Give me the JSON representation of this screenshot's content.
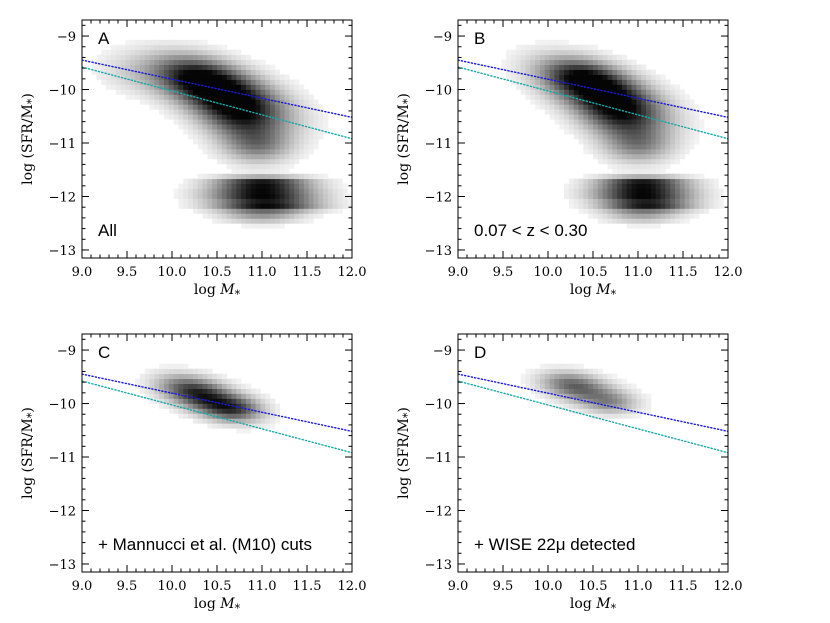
{
  "chart_data": [
    {
      "type": "heatmap",
      "panel": "A",
      "annotation": "All",
      "xlabel_text": "log ",
      "xlabel_var": "M",
      "xlabel_sub": "*",
      "ylabel": "log (SFR/M",
      "ylabel_sub": "*",
      "ylabel_end": ")",
      "xlim": [
        9.0,
        12.0
      ],
      "ylim": [
        -13.15,
        -8.7
      ],
      "xticks": [
        "9.0",
        "9.5",
        "10.0",
        "10.5",
        "11.0",
        "11.5",
        "12.0"
      ],
      "yticks": [
        "-9",
        "-10",
        "-11",
        "-12",
        "-13"
      ],
      "grid": false,
      "density_components": [
        {
          "x": 10.55,
          "y": -10.05,
          "sx": 0.45,
          "sy": 0.38,
          "rho": -0.55,
          "w": 1.0
        },
        {
          "x": 10.75,
          "y": -10.55,
          "sx": 0.3,
          "sy": 0.35,
          "rho": -0.3,
          "w": 0.55
        },
        {
          "x": 10.3,
          "y": -9.75,
          "sx": 0.3,
          "sy": 0.25,
          "rho": -0.3,
          "w": 0.45
        },
        {
          "x": 10.95,
          "y": -11.05,
          "sx": 0.25,
          "sy": 0.22,
          "rho": 0.0,
          "w": 0.35
        },
        {
          "x": 11.0,
          "y": -11.75,
          "sx": 0.35,
          "sy": 0.08,
          "rho": 0.0,
          "w": 1.0
        },
        {
          "x": 11.0,
          "y": -11.95,
          "sx": 0.38,
          "sy": 0.08,
          "rho": 0.0,
          "w": 1.0
        },
        {
          "x": 11.05,
          "y": -12.15,
          "sx": 0.38,
          "sy": 0.08,
          "rho": 0.0,
          "w": 0.95
        },
        {
          "x": 11.0,
          "y": -12.35,
          "sx": 0.3,
          "sy": 0.1,
          "rho": 0.0,
          "w": 0.35
        },
        {
          "x": 9.6,
          "y": -9.7,
          "sx": 0.3,
          "sy": 0.25,
          "rho": -0.2,
          "w": 0.12
        }
      ],
      "lines": [
        {
          "name": "",
          "color": "#1a1ad8",
          "x": [
            9.0,
            12.0
          ],
          "y": [
            -9.45,
            -10.52
          ]
        },
        {
          "name": "",
          "color": "#1aa8a8",
          "x": [
            9.0,
            12.0
          ],
          "y": [
            -9.58,
            -10.92
          ]
        }
      ]
    },
    {
      "type": "heatmap",
      "panel": "B",
      "annotation": "0.07 < z < 0.30",
      "xlabel_text": "log ",
      "xlabel_var": "M",
      "xlabel_sub": "*",
      "ylabel": "log (SFR/M",
      "ylabel_sub": "*",
      "ylabel_end": ")",
      "xlim": [
        9.0,
        12.0
      ],
      "ylim": [
        -13.15,
        -8.7
      ],
      "xticks": [
        "9.0",
        "9.5",
        "10.0",
        "10.5",
        "11.0",
        "11.5",
        "12.0"
      ],
      "yticks": [
        "-9",
        "-10",
        "-11",
        "-12",
        "-13"
      ],
      "grid": false,
      "density_components": [
        {
          "x": 10.6,
          "y": -10.05,
          "sx": 0.42,
          "sy": 0.36,
          "rho": -0.55,
          "w": 1.0
        },
        {
          "x": 10.8,
          "y": -10.55,
          "sx": 0.3,
          "sy": 0.32,
          "rho": -0.3,
          "w": 0.55
        },
        {
          "x": 10.4,
          "y": -9.75,
          "sx": 0.28,
          "sy": 0.22,
          "rho": -0.3,
          "w": 0.45
        },
        {
          "x": 11.0,
          "y": -11.05,
          "sx": 0.25,
          "sy": 0.22,
          "rho": 0.0,
          "w": 0.35
        },
        {
          "x": 11.05,
          "y": -11.75,
          "sx": 0.33,
          "sy": 0.08,
          "rho": 0.0,
          "w": 1.0
        },
        {
          "x": 11.05,
          "y": -11.95,
          "sx": 0.35,
          "sy": 0.08,
          "rho": 0.0,
          "w": 1.0
        },
        {
          "x": 11.1,
          "y": -12.15,
          "sx": 0.33,
          "sy": 0.08,
          "rho": 0.0,
          "w": 0.9
        },
        {
          "x": 11.05,
          "y": -12.35,
          "sx": 0.28,
          "sy": 0.1,
          "rho": 0.0,
          "w": 0.3
        }
      ],
      "lines": [
        {
          "name": "",
          "color": "#1a1ad8",
          "x": [
            9.0,
            12.0
          ],
          "y": [
            -9.45,
            -10.52
          ]
        },
        {
          "name": "",
          "color": "#1aa8a8",
          "x": [
            9.0,
            12.0
          ],
          "y": [
            -9.58,
            -10.92
          ]
        }
      ]
    },
    {
      "type": "heatmap",
      "panel": "C",
      "annotation": "+ Mannucci et al. (M10) cuts",
      "xlabel_text": "log ",
      "xlabel_var": "M",
      "xlabel_sub": "*",
      "ylabel": "log (SFR/M",
      "ylabel_sub": "*",
      "ylabel_end": ")",
      "xlim": [
        9.0,
        12.0
      ],
      "ylim": [
        -13.15,
        -8.7
      ],
      "xticks": [
        "9.0",
        "9.5",
        "10.0",
        "10.5",
        "11.0",
        "11.5",
        "12.0"
      ],
      "yticks": [
        "-9",
        "-10",
        "-11",
        "-12",
        "-13"
      ],
      "grid": false,
      "density_components": [
        {
          "x": 10.45,
          "y": -9.95,
          "sx": 0.3,
          "sy": 0.22,
          "rho": -0.5,
          "w": 0.75
        },
        {
          "x": 10.2,
          "y": -9.7,
          "sx": 0.25,
          "sy": 0.18,
          "rho": -0.3,
          "w": 0.4
        },
        {
          "x": 10.7,
          "y": -10.1,
          "sx": 0.2,
          "sy": 0.15,
          "rho": 0.0,
          "w": 0.35
        }
      ],
      "lines": [
        {
          "name": "",
          "color": "#1a1ad8",
          "x": [
            9.0,
            12.0
          ],
          "y": [
            -9.45,
            -10.52
          ]
        },
        {
          "name": "",
          "color": "#1aa8a8",
          "x": [
            9.0,
            12.0
          ],
          "y": [
            -9.58,
            -10.92
          ]
        }
      ]
    },
    {
      "type": "heatmap",
      "panel": "D",
      "annotation": "+ WISE 22μ detected",
      "xlabel_text": "log ",
      "xlabel_var": "M",
      "xlabel_sub": "*",
      "ylabel": "log (SFR/M",
      "ylabel_sub": "*",
      "ylabel_end": ")",
      "xlim": [
        9.0,
        12.0
      ],
      "ylim": [
        -13.15,
        -8.7
      ],
      "xticks": [
        "9.0",
        "9.5",
        "10.0",
        "10.5",
        "11.0",
        "11.5",
        "12.0"
      ],
      "yticks": [
        "-9",
        "-10",
        "-11",
        "-12",
        "-13"
      ],
      "grid": false,
      "density_components": [
        {
          "x": 10.45,
          "y": -9.8,
          "sx": 0.3,
          "sy": 0.2,
          "rho": -0.45,
          "w": 0.45
        },
        {
          "x": 10.25,
          "y": -9.6,
          "sx": 0.22,
          "sy": 0.15,
          "rho": -0.2,
          "w": 0.3
        },
        {
          "x": 10.7,
          "y": -10.0,
          "sx": 0.18,
          "sy": 0.13,
          "rho": 0.0,
          "w": 0.2
        }
      ],
      "lines": [
        {
          "name": "",
          "color": "#1a1ad8",
          "x": [
            9.0,
            12.0
          ],
          "y": [
            -9.45,
            -10.52
          ]
        },
        {
          "name": "",
          "color": "#1aa8a8",
          "x": [
            9.0,
            12.0
          ],
          "y": [
            -9.58,
            -10.92
          ]
        }
      ]
    }
  ]
}
